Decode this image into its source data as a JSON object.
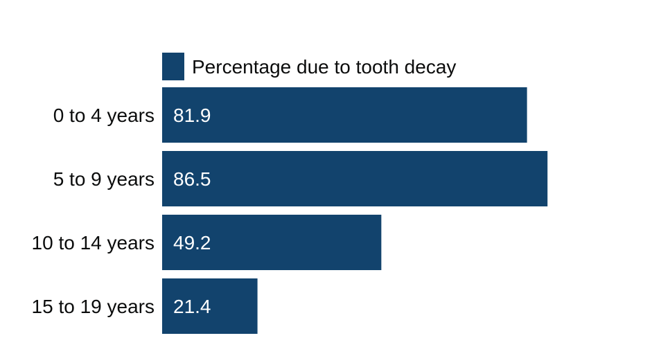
{
  "chart_data": {
    "type": "bar",
    "orientation": "horizontal",
    "categories": [
      "0 to 4 years",
      "5 to 9 years",
      "10 to 14 years",
      "15 to 19 years"
    ],
    "series": [
      {
        "name": "Percentage due to tooth decay",
        "values": [
          81.9,
          86.5,
          49.2,
          21.4
        ],
        "color": "#12436d"
      }
    ],
    "xlim": [
      0,
      100
    ],
    "grid": false,
    "legend": "top-left"
  }
}
